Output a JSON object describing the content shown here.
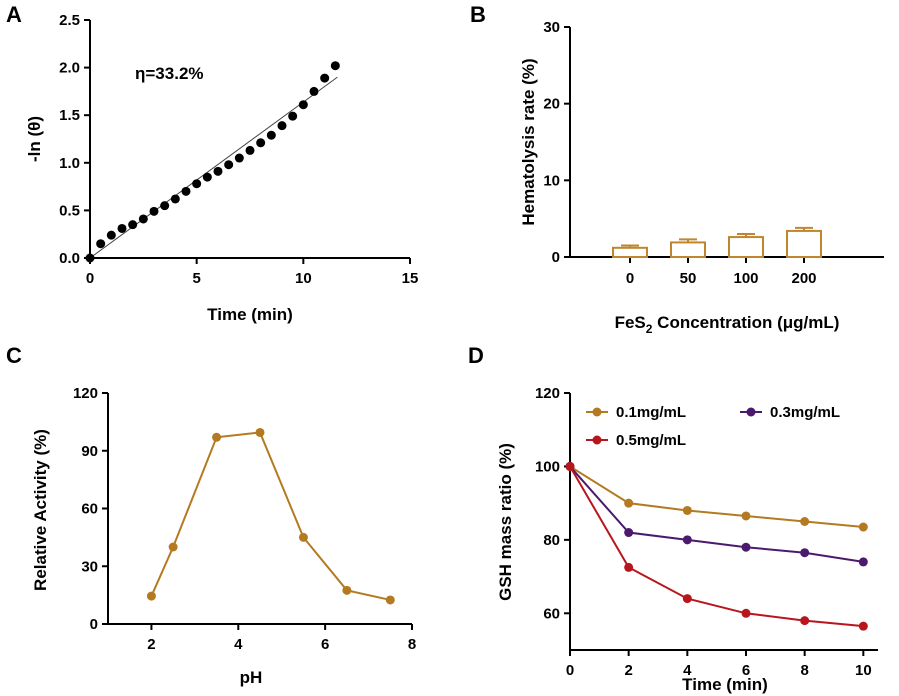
{
  "chart_data": [
    {
      "panel": "A",
      "type": "scatter",
      "ylabel": "-ln (θ)",
      "xlabel": "Time (min)",
      "annotation": "η=33.2%",
      "xlim": [
        0,
        15
      ],
      "ylim": [
        0,
        2.5
      ],
      "xticks": [
        0,
        5,
        10,
        15
      ],
      "yticks": [
        0.0,
        0.5,
        1.0,
        1.5,
        2.0,
        2.5
      ],
      "xtick_labels": [
        "0",
        "5",
        "10",
        "15"
      ],
      "ytick_labels": [
        "0.0",
        "0.5",
        "1.0",
        "1.5",
        "2.0",
        "2.5"
      ],
      "x": [
        0,
        0.5,
        1,
        1.5,
        2,
        2.5,
        3,
        3.5,
        4,
        4.5,
        5,
        5.5,
        6,
        6.5,
        7,
        7.5,
        8,
        8.5,
        9,
        9.5,
        10,
        10.5,
        11,
        11.5
      ],
      "y": [
        0,
        0.15,
        0.24,
        0.31,
        0.35,
        0.41,
        0.49,
        0.55,
        0.62,
        0.7,
        0.78,
        0.85,
        0.91,
        0.98,
        1.05,
        1.13,
        1.21,
        1.29,
        1.39,
        1.49,
        1.61,
        1.75,
        1.89,
        2.02
      ],
      "fit_line": {
        "x": [
          0,
          11.6
        ],
        "y": [
          0,
          1.9
        ]
      }
    },
    {
      "panel": "B",
      "type": "bar",
      "ylabel": "Hematolysis rate (%)",
      "xlabel_main": "FeS",
      "xlabel_sub": "2",
      "xlabel_rest": " Concentration (μg/mL)",
      "categories": [
        "0",
        "50",
        "100",
        "200"
      ],
      "values": [
        1.2,
        1.9,
        2.6,
        3.4
      ],
      "errors": [
        0.3,
        0.4,
        0.4,
        0.4
      ],
      "ylim": [
        0,
        30
      ],
      "yticks": [
        0,
        10,
        20,
        30
      ],
      "ytick_labels": [
        "0",
        "10",
        "20",
        "30"
      ],
      "color": "#c0862f"
    },
    {
      "panel": "C",
      "type": "line",
      "ylabel": "Relative Activity (%)",
      "xlabel": "pH",
      "xlim": [
        1,
        8
      ],
      "ylim": [
        0,
        120
      ],
      "xticks": [
        2,
        4,
        6,
        8
      ],
      "yticks": [
        0,
        30,
        60,
        90,
        120
      ],
      "xtick_labels": [
        "2",
        "4",
        "6",
        "8"
      ],
      "ytick_labels": [
        "0",
        "30",
        "60",
        "90",
        "120"
      ],
      "x": [
        2,
        2.5,
        3.5,
        4.5,
        5.5,
        6.5,
        7.5
      ],
      "y": [
        14.5,
        40,
        97,
        99.5,
        45,
        17.5,
        12.5
      ],
      "color": "#b47a22"
    },
    {
      "panel": "D",
      "type": "line",
      "ylabel": "GSH mass ratio (%)",
      "xlabel": "Time (min)",
      "xlim": [
        0,
        10.5
      ],
      "ylim": [
        50,
        120
      ],
      "xticks": [
        0,
        2,
        4,
        6,
        8,
        10
      ],
      "yticks": [
        60,
        80,
        100,
        120
      ],
      "xtick_labels": [
        "0",
        "2",
        "4",
        "6",
        "8",
        "10"
      ],
      "ytick_labels": [
        "60",
        "80",
        "100",
        "120"
      ],
      "x": [
        0,
        2,
        4,
        6,
        8,
        10
      ],
      "series": [
        {
          "name": "0.1mg/mL",
          "values": [
            100,
            90,
            88,
            86.5,
            85,
            83.5
          ],
          "color": "#b47a22"
        },
        {
          "name": "0.3mg/mL",
          "values": [
            100,
            82,
            80,
            78,
            76.5,
            74
          ],
          "color": "#4b1a6e"
        },
        {
          "name": "0.5mg/mL",
          "values": [
            100,
            72.5,
            64,
            60,
            58,
            56.5
          ],
          "color": "#b8161c"
        }
      ]
    }
  ]
}
